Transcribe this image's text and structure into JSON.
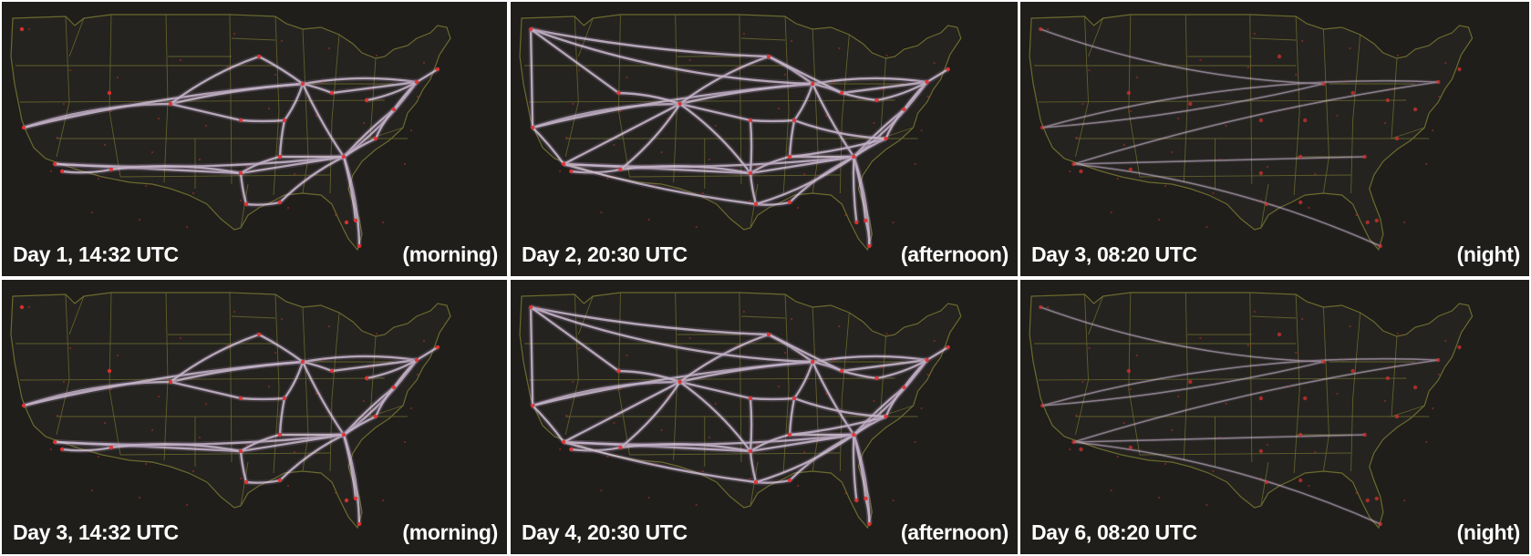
{
  "colors": {
    "background": "#1f1e1b",
    "state_borders": "#6b6a2e",
    "flow_lines": "#ead7ef",
    "airports": "#e0302f",
    "label_text": "#ffffff"
  },
  "panels": [
    {
      "time_label": "Day 1, 14:32 UTC",
      "period_label": "(morning)",
      "traffic": "dense"
    },
    {
      "time_label": "Day 2, 20:30 UTC",
      "period_label": "(afternoon)",
      "traffic": "full"
    },
    {
      "time_label": "Day 3, 08:20 UTC",
      "period_label": "(night)",
      "traffic": "sparse"
    },
    {
      "time_label": "Day 3, 14:32 UTC",
      "period_label": "(morning)",
      "traffic": "dense"
    },
    {
      "time_label": "Day 4, 20:30 UTC",
      "period_label": "(afternoon)",
      "traffic": "full"
    },
    {
      "time_label": "Day 6, 08:20 UTC",
      "period_label": "(night)",
      "traffic": "sparse"
    }
  ]
}
